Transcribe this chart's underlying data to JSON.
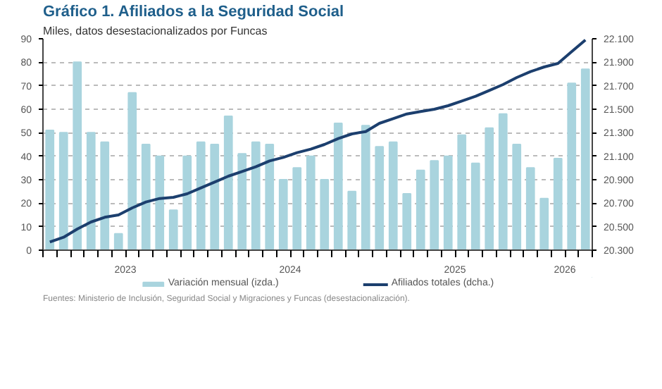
{
  "chart_data": {
    "type": "bar",
    "title": "Gráfico 1. Afiliados a la Seguridad Social",
    "subtitle": "Miles, datos desestacionalizados por Funcas",
    "annotations": [
      "Fuentes: Ministerio de Inclusión, Seguridad Social y Migraciones y Funcas (desestacionalización)."
    ],
    "x": [
      "2023-01",
      "2023-02",
      "2023-03",
      "2023-04",
      "2023-05",
      "2023-06",
      "2023-07",
      "2023-08",
      "2023-09",
      "2023-10",
      "2023-11",
      "2023-12",
      "2024-01",
      "2024-02",
      "2024-03",
      "2024-04",
      "2024-05",
      "2024-06",
      "2024-07",
      "2024-08",
      "2024-09",
      "2024-10",
      "2024-11",
      "2024-12",
      "2025-01",
      "2025-02",
      "2025-03",
      "2025-04",
      "2025-05",
      "2025-06",
      "2025-07",
      "2025-08",
      "2025-09",
      "2025-10",
      "2025-11",
      "2025-12",
      "2026-01",
      "2026-02",
      "2026-03",
      "2026-04"
    ],
    "xlim": [
      "2022-12-16",
      "2026-04-16"
    ],
    "xticks": [
      {
        "value": "2023-06-16",
        "label": "2023"
      },
      {
        "value": "2024-06-16",
        "label": "2024"
      },
      {
        "value": "2025-06-16",
        "label": "2025"
      },
      {
        "value": "2026-02-16",
        "label": "2026"
      }
    ],
    "series": [
      {
        "name": "Variación mensual (izda.)",
        "color": "#a9d4de",
        "values": [
          51,
          50,
          80,
          50,
          46,
          7,
          67,
          45,
          40,
          17,
          40,
          46,
          45,
          57,
          41,
          46,
          45,
          30,
          35,
          40,
          30,
          54,
          25,
          53,
          44,
          46,
          24,
          34,
          38,
          40,
          49,
          37,
          52,
          58,
          45,
          35,
          22,
          39,
          71,
          77
        ]
      },
      {
        "name": "Afiliados totales (dcha.)",
        "type": "line",
        "axis": "y2",
        "color": "#1c3f6e",
        "values": [
          20370,
          20410,
          20480,
          20540,
          20580,
          20600,
          20660,
          20710,
          20740,
          20750,
          20780,
          20830,
          20880,
          20930,
          20970,
          21010,
          21060,
          21090,
          21130,
          21160,
          21200,
          21250,
          21290,
          21310,
          21380,
          21420,
          21460,
          21480,
          21500,
          21530,
          21570,
          21610,
          21660,
          21710,
          21770,
          21820,
          21860,
          21890,
          21990,
          22090
        ]
      }
    ],
    "ylim": [
      0,
      90
    ],
    "yticks": [
      0,
      10,
      20,
      30,
      40,
      50,
      60,
      70,
      80,
      90
    ],
    "y2lim": [
      20300,
      22100
    ],
    "y2ticks": [
      {
        "value": 20300,
        "label": "20.300"
      },
      {
        "value": 20500,
        "label": "20.500"
      },
      {
        "value": 20700,
        "label": "20.700"
      },
      {
        "value": 20900,
        "label": "20.900"
      },
      {
        "value": 21100,
        "label": "21.100"
      },
      {
        "value": 21300,
        "label": "21.300"
      },
      {
        "value": 21500,
        "label": "21.500"
      },
      {
        "value": 21700,
        "label": "21.700"
      },
      {
        "value": 21900,
        "label": "21.900"
      },
      {
        "value": 22100,
        "label": "22.100"
      }
    ],
    "grid": "y",
    "legend": "bottom"
  }
}
